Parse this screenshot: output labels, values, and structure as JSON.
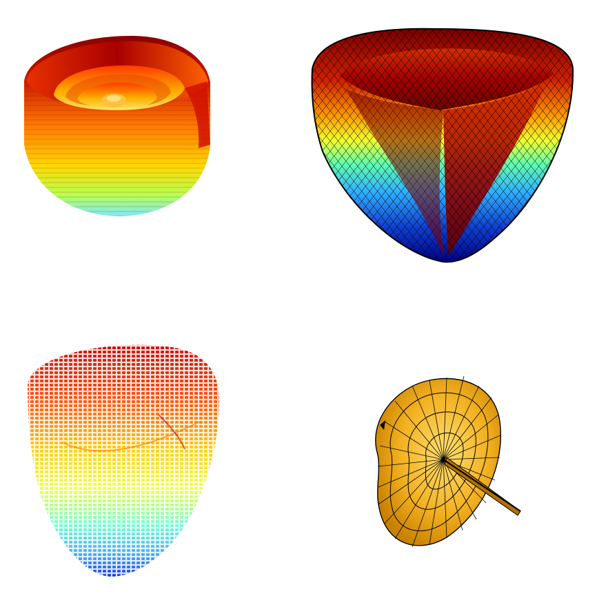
{
  "figure": {
    "background": "#ffffff",
    "panels": [
      {
        "colormap": "jet",
        "style": "smooth-shaded",
        "edge_color": "none"
      },
      {
        "colormap": "jet",
        "style": "shaded-mesh",
        "edge_color": "#000000"
      },
      {
        "colormap": "jet",
        "style": "wireframe",
        "edge_color": "colormapped"
      },
      {
        "colormap": "single-color",
        "face_color": "#f2b020",
        "style": "shaded-mesh",
        "edge_color": "#000000"
      }
    ]
  }
}
